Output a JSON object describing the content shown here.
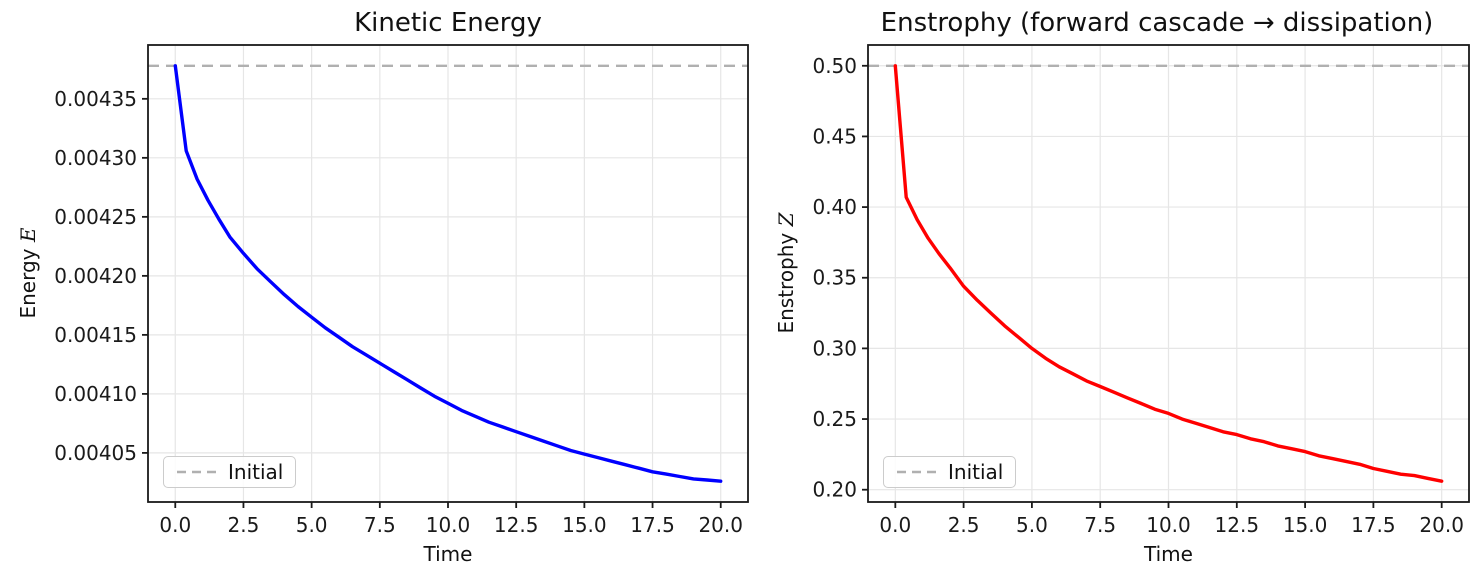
{
  "chart_data": [
    {
      "type": "line",
      "title": "Kinetic Energy",
      "xlabel": "Time",
      "ylabel_text": "Energy",
      "ylabel_math_var": "E",
      "legend_label": "Initial",
      "legend_position": "lower left",
      "grid": true,
      "grid_color": "#e6e6e6",
      "axis_color": "#1a1a1a",
      "initial_value": 0.004378,
      "initial_line_color": "#b0b0b0",
      "xlim": [
        -1,
        21
      ],
      "ylim": [
        0.0040084,
        0.0043956
      ],
      "xticks": {
        "values": [
          0,
          2.5,
          5,
          7.5,
          10,
          12.5,
          15,
          17.5,
          20
        ],
        "labels": [
          "0.0",
          "2.5",
          "5.0",
          "7.5",
          "10.0",
          "12.5",
          "15.0",
          "17.5",
          "20.0"
        ]
      },
      "yticks": {
        "values": [
          0.00405,
          0.0041,
          0.00415,
          0.0042,
          0.00425,
          0.0043,
          0.00435
        ],
        "labels": [
          "0.00405",
          "0.00410",
          "0.00415",
          "0.00420",
          "0.00425",
          "0.00430",
          "0.00435"
        ]
      },
      "series": [
        {
          "name": "Energy E(t)",
          "color": "#0000ff",
          "x": [
            0,
            0.4,
            0.8,
            1.2,
            1.6,
            2,
            2.5,
            3,
            3.5,
            4,
            4.5,
            5,
            5.5,
            6,
            6.5,
            7,
            7.5,
            8,
            8.5,
            9,
            9.5,
            10,
            10.5,
            11,
            11.5,
            12,
            12.5,
            13,
            13.5,
            14,
            14.5,
            15,
            15.5,
            16,
            16.5,
            17,
            17.5,
            18,
            18.5,
            19,
            19.5,
            20
          ],
          "y": [
            0.004378,
            0.004306,
            0.004282,
            0.004264,
            0.004248,
            0.004233,
            0.004219,
            0.004206,
            0.004195,
            0.004184,
            0.004174,
            0.004165,
            0.004156,
            0.004148,
            0.00414,
            0.004133,
            0.004126,
            0.004119,
            0.004112,
            0.004105,
            0.004098,
            0.004092,
            0.004086,
            0.004081,
            0.004076,
            0.004072,
            0.004068,
            0.004064,
            0.00406,
            0.004056,
            0.004052,
            0.004049,
            0.004046,
            0.004043,
            0.00404,
            0.004037,
            0.004034,
            0.004032,
            0.00403,
            0.004028,
            0.004027,
            0.004026
          ]
        }
      ]
    },
    {
      "type": "line",
      "title": "Enstrophy (forward cascade → dissipation)",
      "xlabel": "Time",
      "ylabel_text": "Enstrophy",
      "ylabel_math_var": "Z",
      "legend_label": "Initial",
      "legend_position": "lower left",
      "grid": true,
      "grid_color": "#e6e6e6",
      "axis_color": "#1a1a1a",
      "initial_value": 0.5,
      "initial_line_color": "#b0b0b0",
      "xlim": [
        -1,
        21
      ],
      "ylim": [
        0.1913,
        0.5147
      ],
      "xticks": {
        "values": [
          0,
          2.5,
          5,
          7.5,
          10,
          12.5,
          15,
          17.5,
          20
        ],
        "labels": [
          "0.0",
          "2.5",
          "5.0",
          "7.5",
          "10.0",
          "12.5",
          "15.0",
          "17.5",
          "20.0"
        ]
      },
      "yticks": {
        "values": [
          0.2,
          0.25,
          0.3,
          0.35,
          0.4,
          0.45,
          0.5
        ],
        "labels": [
          "0.20",
          "0.25",
          "0.30",
          "0.35",
          "0.40",
          "0.45",
          "0.50"
        ]
      },
      "series": [
        {
          "name": "Enstrophy Z(t)",
          "color": "#ff0000",
          "x": [
            0,
            0.4,
            0.8,
            1.2,
            1.6,
            2,
            2.5,
            3,
            3.5,
            4,
            4.5,
            5,
            5.5,
            6,
            6.5,
            7,
            7.5,
            8,
            8.5,
            9,
            9.5,
            10,
            10.5,
            11,
            11.5,
            12,
            12.5,
            13,
            13.5,
            14,
            14.5,
            15,
            15.5,
            16,
            16.5,
            17,
            17.5,
            18,
            18.5,
            19,
            19.5,
            20
          ],
          "y": [
            0.5,
            0.407,
            0.391,
            0.378,
            0.367,
            0.357,
            0.344,
            0.334,
            0.325,
            0.316,
            0.308,
            0.3,
            0.293,
            0.287,
            0.282,
            0.277,
            0.273,
            0.269,
            0.265,
            0.261,
            0.257,
            0.254,
            0.25,
            0.247,
            0.244,
            0.241,
            0.239,
            0.236,
            0.234,
            0.231,
            0.229,
            0.227,
            0.224,
            0.222,
            0.22,
            0.218,
            0.215,
            0.213,
            0.211,
            0.21,
            0.208,
            0.206
          ]
        }
      ]
    }
  ]
}
